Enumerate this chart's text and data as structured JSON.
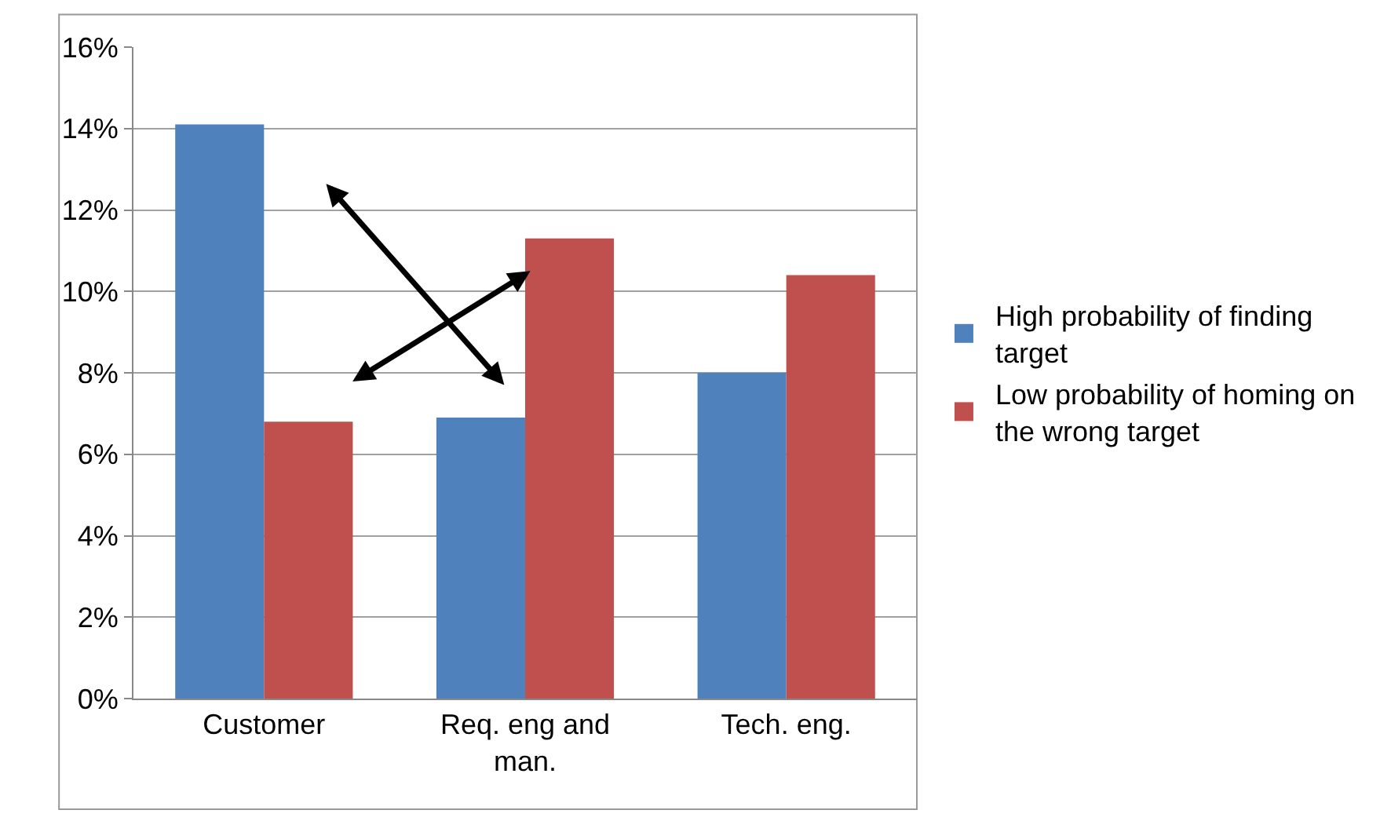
{
  "chart_data": {
    "type": "bar",
    "categories": [
      "Customer",
      "Req. eng and man.",
      "Tech. eng."
    ],
    "series": [
      {
        "name": "High probability of finding target",
        "color": "#4f81bd",
        "values": [
          14.1,
          6.9,
          8.0
        ]
      },
      {
        "name": "Low probability of homing on the wrong target",
        "color": "#c0504d",
        "values": [
          6.8,
          11.3,
          10.4
        ]
      }
    ],
    "ylim": [
      0,
      16
    ],
    "yticks": [
      {
        "value": 0,
        "label": "0%"
      },
      {
        "value": 2,
        "label": "2%"
      },
      {
        "value": 4,
        "label": "4%"
      },
      {
        "value": 6,
        "label": "6%"
      },
      {
        "value": 8,
        "label": "8%"
      },
      {
        "value": 10,
        "label": "10%"
      },
      {
        "value": 12,
        "label": "12%"
      },
      {
        "value": 14,
        "label": "14%"
      },
      {
        "value": 16,
        "label": "16%"
      }
    ],
    "grid": "y",
    "legend": "right"
  }
}
